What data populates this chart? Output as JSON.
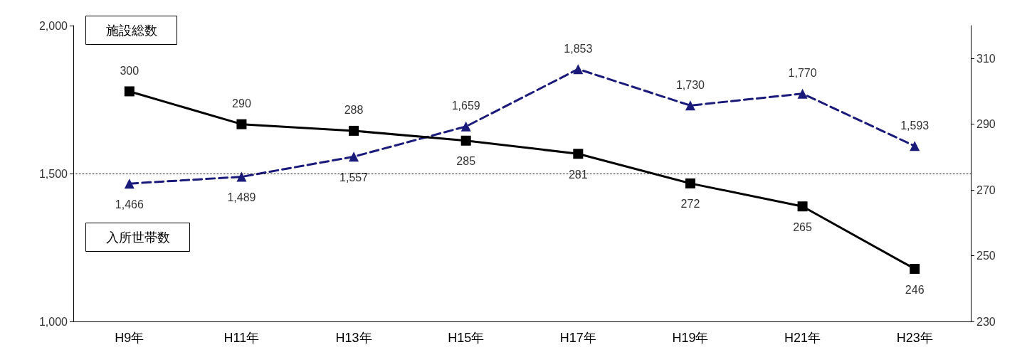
{
  "chart_data": {
    "type": "line",
    "categories": [
      "H9年",
      "H11年",
      "H13年",
      "H15年",
      "H17年",
      "H19年",
      "H21年",
      "H23年"
    ],
    "series": [
      {
        "axis": "y2",
        "color": "#000000",
        "marker": "square",
        "line_style": "solid",
        "values": [
          300,
          290,
          288,
          285,
          281,
          272,
          265,
          246
        ]
      },
      {
        "color": "#1a1a7a",
        "marker": "triangle",
        "line_style": "dashed",
        "values": [
          1466,
          1489,
          1557,
          1659,
          1853,
          1730,
          1770,
          1593
        ],
        "value_labels": [
          "1,466",
          "1,489",
          "1,557",
          "1,659",
          "1,853",
          "1,730",
          "1,770",
          "1,593"
        ]
      }
    ],
    "ylim": [
      1000,
      2000
    ],
    "yticks": [
      {
        "value": 1000,
        "label": "1,000"
      },
      {
        "value": 1500,
        "label": "1,500"
      },
      {
        "value": 2000,
        "label": "2,000"
      }
    ],
    "y2lim": [
      230,
      320
    ],
    "y2ticks": [
      230,
      250,
      270,
      290,
      310
    ],
    "ref_lines": [
      {
        "axis": "y",
        "value": 1500,
        "line_style": "dotted",
        "color": "#000000"
      }
    ],
    "annotations": [
      "施設総数",
      "入所世帯数"
    ],
    "data_labels": true,
    "grid": false
  }
}
